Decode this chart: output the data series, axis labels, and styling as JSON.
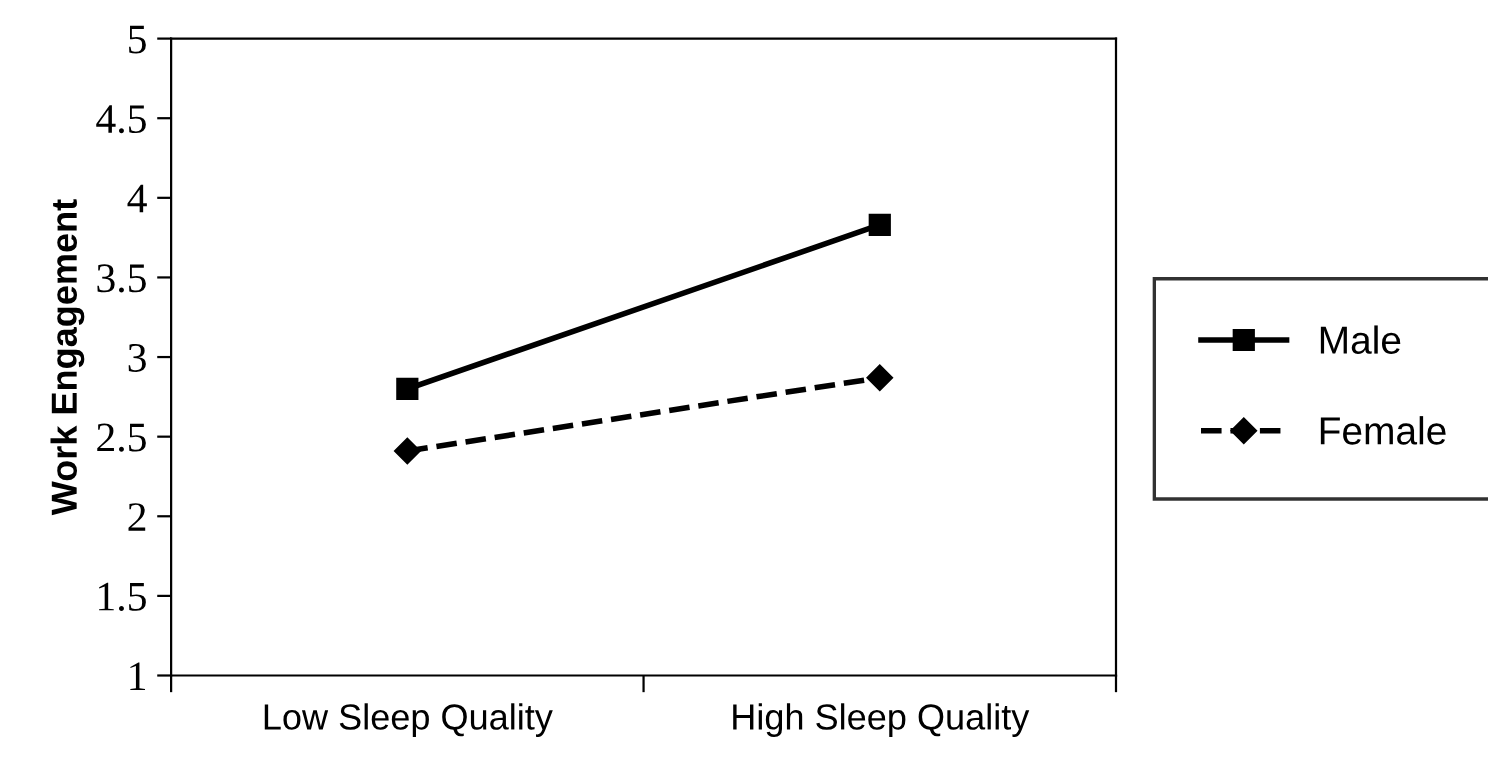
{
  "chart_data": {
    "type": "line",
    "ylabel": "Work Engagement",
    "categories": [
      "Low Sleep Quality",
      "High Sleep Quality"
    ],
    "series": [
      {
        "name": "Male",
        "color": "#000000",
        "values": [
          2.8,
          3.83
        ],
        "marker": "square",
        "line_style": "solid"
      },
      {
        "name": "Female",
        "color": "#000000",
        "values": [
          2.41,
          2.87
        ],
        "marker": "diamond",
        "line_style": "dashed"
      }
    ],
    "ylim": [
      1,
      5
    ],
    "yticks": [
      1,
      1.5,
      2,
      2.5,
      3,
      3.5,
      4,
      4.5,
      5
    ],
    "grid": false,
    "legend": "right"
  }
}
